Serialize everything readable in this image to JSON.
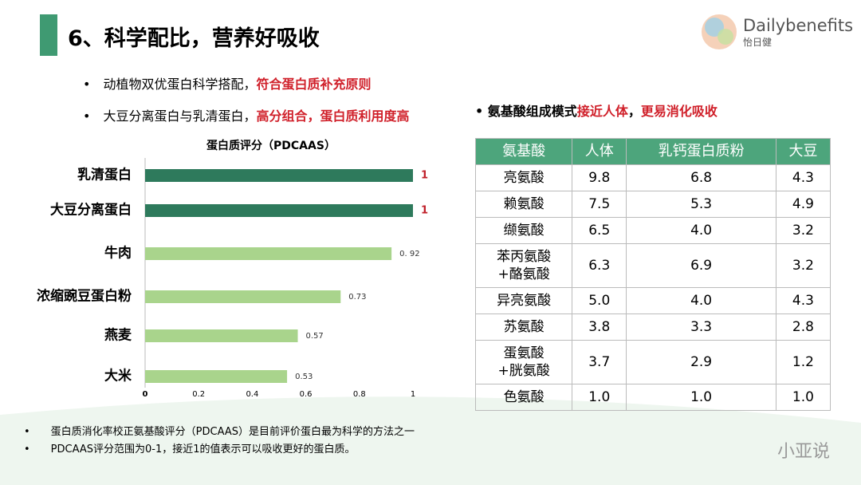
{
  "header": {
    "title": "6、科学配比，营养好吸收",
    "logo_brand": "Dailybenefits",
    "logo_cn": "怡日健"
  },
  "bullets": [
    [
      {
        "text": "动植物双优蛋白科学搭配，",
        "red": false
      },
      {
        "text": "符合蛋白质补充原则",
        "red": true
      }
    ],
    [
      {
        "text": "大豆分离蛋白与乳清蛋白，",
        "red": false
      },
      {
        "text": "高分组合，蛋白质利用度高",
        "red": true
      }
    ]
  ],
  "right_bullet": [
    {
      "text": "氨基酸组成模式",
      "red": false
    },
    {
      "text": "接近人体",
      "red": true
    },
    {
      "text": "，",
      "red": false
    },
    {
      "text": "更易消化吸收",
      "red": true
    }
  ],
  "chart_data": {
    "type": "hbar",
    "title": "蛋白质评分（PDCAAS）",
    "categories": [
      "乳清蛋白",
      "大豆分离蛋白",
      "牛肉",
      "浓缩豌豆蛋白粉",
      "燕麦",
      "大米"
    ],
    "values": [
      1,
      1,
      0.92,
      0.73,
      0.57,
      0.53
    ],
    "value_labels": [
      "1",
      "1",
      "0. 92",
      "0.73",
      "0.57",
      "0.53"
    ],
    "colors": [
      "#2e7a5c",
      "#2e7a5c",
      "#a9d48c",
      "#a9d48c",
      "#a9d48c",
      "#a9d48c"
    ],
    "xlim": [
      0,
      1
    ],
    "xticks": [
      0,
      0.2,
      0.4,
      0.6,
      0.8,
      1
    ]
  },
  "table": {
    "header": [
      "氨基酸",
      "人体",
      "乳钙蛋白质粉",
      "大豆"
    ],
    "rows": [
      [
        "亮氨酸",
        "9.8",
        "6.8",
        "4.3"
      ],
      [
        "赖氨酸",
        "7.5",
        "5.3",
        "4.9"
      ],
      [
        "缬氨酸",
        "6.5",
        "4.0",
        "3.2"
      ],
      [
        "苯丙氨酸\n+酪氨酸",
        "6.3",
        "6.9",
        "3.2"
      ],
      [
        "异亮氨酸",
        "5.0",
        "4.0",
        "4.3"
      ],
      [
        "苏氨酸",
        "3.8",
        "3.3",
        "2.8"
      ],
      [
        "蛋氨酸\n+胱氨酸",
        "3.7",
        "2.9",
        "1.2"
      ],
      [
        "色氨酸",
        "1.0",
        "1.0",
        "1.0"
      ]
    ]
  },
  "footnotes": [
    "蛋白质消化率校正氨基酸评分（PDCAAS）是目前评价蛋白最为科学的方法之一",
    "PDCAAS评分范围为0-1，接近1的值表示可以吸收更好的蛋白质。"
  ],
  "watermark": "小亚说"
}
